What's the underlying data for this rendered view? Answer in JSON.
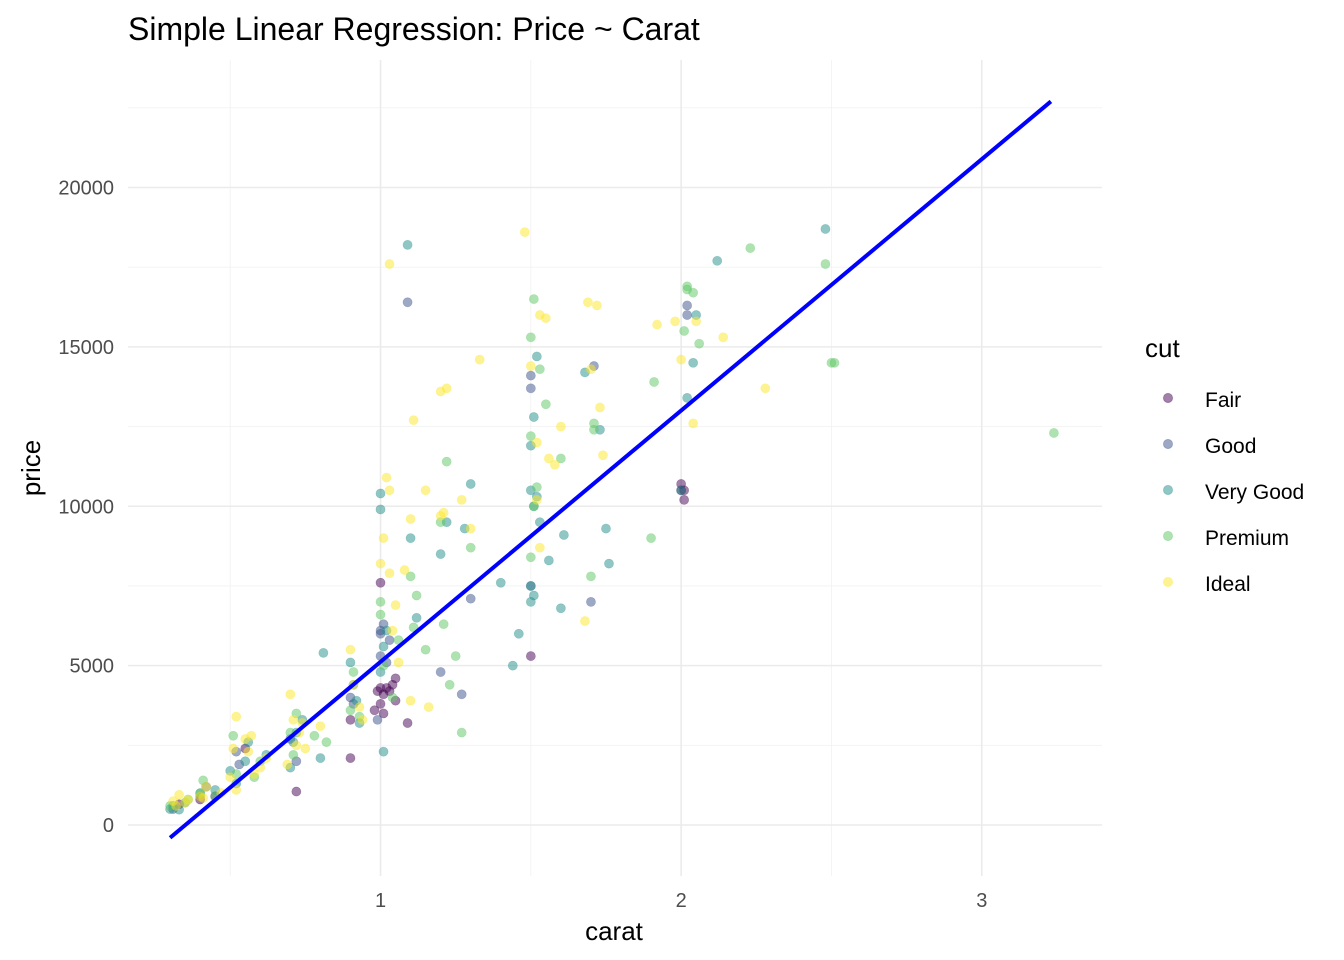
{
  "chart_data": {
    "type": "scatter",
    "title": "Simple Linear Regression: Price ~ Carat",
    "xlabel": "carat",
    "ylabel": "price",
    "xlim": [
      0.16,
      3.4
    ],
    "ylim": [
      -1600,
      24000
    ],
    "x_ticks": [
      1,
      2,
      3
    ],
    "x_tick_labels": [
      "1",
      "2",
      "3"
    ],
    "y_ticks": [
      0,
      5000,
      10000,
      15000,
      20000
    ],
    "y_tick_labels": [
      "0",
      "5000",
      "10000",
      "15000",
      "20000"
    ],
    "grid": true,
    "legend": {
      "title": "cut",
      "position": "right",
      "entries": [
        {
          "label": "Fair",
          "color": "#440154"
        },
        {
          "label": "Good",
          "color": "#3B528B"
        },
        {
          "label": "Very Good",
          "color": "#21908C"
        },
        {
          "label": "Premium",
          "color": "#5DC863"
        },
        {
          "label": "Ideal",
          "color": "#FDE725"
        }
      ]
    },
    "point_opacity": 0.5,
    "regression_line": {
      "color": "#0000FF",
      "x": [
        0.3,
        3.23
      ],
      "y": [
        -400,
        22700
      ]
    },
    "series": [
      {
        "name": "Fair",
        "color": "#440154",
        "x": [
          0.55,
          0.72,
          0.9,
          0.98,
          0.99,
          1.0,
          1.0,
          1.01,
          1.01,
          1.02,
          1.03,
          1.05,
          1.05,
          1.09,
          1.5,
          2.0,
          2.0,
          2.01,
          2.01,
          0.4,
          0.33,
          0.45,
          1.0,
          0.9,
          1.04
        ],
        "y": [
          2400,
          1050,
          2100,
          3600,
          4200,
          4300,
          3800,
          4100,
          3500,
          4300,
          4200,
          4600,
          3900,
          3200,
          5300,
          10700,
          10500,
          10200,
          10500,
          800,
          650,
          900,
          7600,
          3300,
          4400
        ]
      },
      {
        "name": "Good",
        "color": "#3B528B",
        "x": [
          1.09,
          1.5,
          1.5,
          1.71,
          2.02,
          2.02,
          0.9,
          0.91,
          1.0,
          1.02,
          1.0,
          0.99,
          1.01,
          1.2,
          1.27,
          1.3,
          1.7,
          0.7,
          0.72,
          0.53,
          0.52,
          0.42,
          1.5,
          0.31,
          0.4,
          1.0,
          1.03
        ],
        "y": [
          16400,
          13700,
          14100,
          14400,
          16300,
          16000,
          4000,
          3800,
          5300,
          5100,
          6100,
          3300,
          6300,
          4800,
          4100,
          7100,
          7000,
          2700,
          2000,
          1900,
          2300,
          1200,
          7500,
          500,
          900,
          6000,
          5800
        ]
      },
      {
        "name": "Very Good",
        "color": "#21908C",
        "x": [
          1.09,
          2.48,
          2.05,
          2.12,
          1.52,
          1.51,
          1.5,
          1.5,
          1.51,
          1.52,
          1.5,
          1.53,
          1.68,
          1.73,
          1.75,
          1.76,
          1.61,
          1.56,
          1.3,
          1.28,
          1.4,
          1.44,
          1.22,
          1.2,
          1.1,
          1.12,
          1.0,
          1.0,
          1.01,
          1.02,
          0.9,
          0.91,
          0.92,
          0.8,
          0.81,
          0.7,
          0.72,
          0.71,
          0.74,
          0.55,
          0.56,
          0.52,
          0.5,
          0.45,
          0.4,
          0.35,
          0.31,
          0.3,
          0.33,
          2.04,
          2.02,
          1.51,
          1.5,
          1.46,
          1.01,
          2.0,
          1.6,
          1.0,
          0.93,
          0.62
        ],
        "y": [
          18200,
          18700,
          16000,
          17700,
          14700,
          12800,
          11900,
          10500,
          10000,
          10300,
          7500,
          9500,
          14200,
          12400,
          9300,
          8200,
          9100,
          8300,
          10700,
          9300,
          7600,
          5000,
          9500,
          8500,
          9000,
          6500,
          10400,
          9900,
          5600,
          6100,
          5100,
          4400,
          3900,
          2100,
          5400,
          1800,
          2900,
          2600,
          3300,
          2000,
          2600,
          1300,
          1700,
          1100,
          1000,
          700,
          600,
          500,
          480,
          14500,
          13400,
          7200,
          7000,
          6000,
          2300,
          10500,
          6800,
          4800,
          3200,
          2200
        ]
      },
      {
        "name": "Premium",
        "color": "#5DC863",
        "x": [
          2.23,
          2.48,
          2.5,
          2.51,
          3.24,
          2.02,
          2.04,
          2.06,
          2.01,
          1.91,
          1.9,
          1.7,
          1.71,
          1.51,
          1.5,
          1.5,
          1.53,
          1.55,
          1.6,
          1.52,
          1.5,
          1.51,
          1.22,
          1.2,
          1.3,
          1.25,
          1.21,
          1.1,
          1.11,
          1.15,
          1.12,
          1.0,
          1.01,
          1.04,
          0.9,
          0.91,
          0.93,
          0.7,
          0.72,
          0.78,
          0.71,
          0.6,
          0.52,
          0.51,
          0.41,
          0.4,
          0.36,
          0.3,
          1.27,
          1.71,
          2.02,
          1.23,
          1.0,
          1.06,
          0.82,
          0.58,
          0.45
        ],
        "y": [
          18100,
          17600,
          14500,
          14500,
          12300,
          16900,
          16700,
          15100,
          15500,
          13900,
          9000,
          7800,
          12600,
          16500,
          15300,
          12200,
          14300,
          13200,
          11500,
          10600,
          8400,
          10000,
          11400,
          9500,
          8700,
          5300,
          6300,
          7800,
          6200,
          5500,
          7200,
          7000,
          5000,
          4000,
          3600,
          4800,
          3400,
          2900,
          3500,
          2800,
          2200,
          2000,
          1600,
          2800,
          1400,
          1000,
          800,
          600,
          2900,
          12400,
          16800,
          4400,
          6600,
          5800,
          2600,
          1500,
          900
        ]
      },
      {
        "name": "Ideal",
        "color": "#FDE725",
        "x": [
          1.48,
          1.03,
          1.69,
          1.72,
          1.53,
          1.55,
          1.33,
          1.2,
          1.22,
          1.11,
          1.5,
          1.52,
          1.56,
          1.58,
          1.6,
          1.74,
          2.0,
          2.04,
          2.14,
          2.28,
          1.98,
          1.92,
          1.02,
          1.03,
          1.1,
          1.15,
          1.2,
          1.01,
          1.0,
          1.03,
          1.05,
          1.08,
          1.3,
          1.27,
          1.04,
          0.9,
          0.91,
          0.93,
          0.7,
          0.71,
          0.72,
          0.73,
          0.74,
          0.8,
          0.75,
          0.55,
          0.56,
          0.58,
          0.6,
          0.51,
          0.52,
          0.5,
          0.47,
          0.42,
          0.41,
          0.4,
          0.36,
          0.35,
          0.33,
          0.32,
          0.31,
          1.7,
          1.73,
          1.68,
          1.1,
          1.16,
          0.52,
          0.69,
          0.62,
          0.57,
          2.05,
          1.52,
          1.53,
          1.06,
          1.21,
          0.94
        ],
        "y": [
          18600,
          17600,
          16400,
          16300,
          16000,
          15900,
          14600,
          13600,
          13700,
          12700,
          14400,
          12000,
          11500,
          11300,
          12500,
          11600,
          14600,
          12600,
          15300,
          13700,
          15800,
          15700,
          10900,
          10500,
          9600,
          10500,
          9700,
          9000,
          8200,
          7900,
          6900,
          8000,
          9300,
          10200,
          6100,
          5500,
          4400,
          3700,
          4100,
          3300,
          2500,
          2900,
          3200,
          3100,
          2400,
          2700,
          2300,
          1600,
          1800,
          2400,
          1100,
          1500,
          1000,
          1200,
          850,
          900,
          800,
          700,
          950,
          600,
          750,
          14300,
          13100,
          6400,
          3900,
          3700,
          3400,
          1900,
          2100,
          2800,
          15800,
          10200,
          8700,
          5100,
          9800,
          3300
        ]
      }
    ]
  }
}
